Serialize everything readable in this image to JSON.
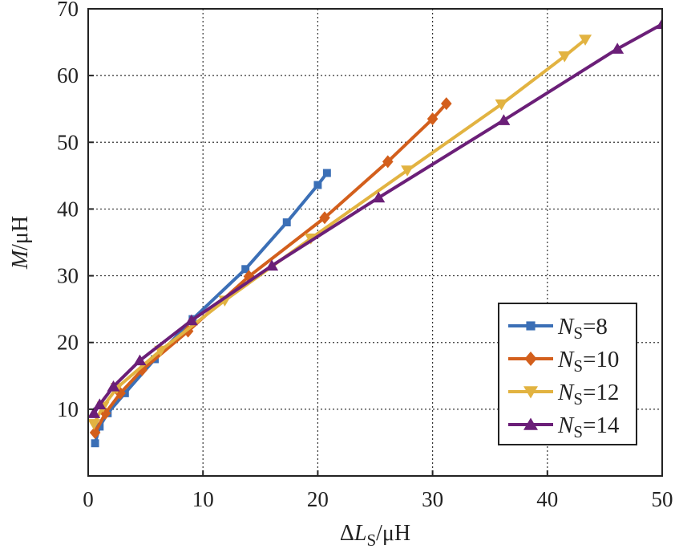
{
  "chart_data": {
    "type": "line",
    "xlabel": "ΔLS/μH",
    "ylabel": "M/μH",
    "xlim": [
      0,
      50
    ],
    "ylim": [
      0,
      70
    ],
    "xticks": [
      0,
      10,
      20,
      30,
      40,
      50
    ],
    "yticks": [
      10,
      20,
      30,
      40,
      50,
      60,
      70
    ],
    "grid": true,
    "legend_position": "bottom-right",
    "series": [
      {
        "name": "NS=8",
        "color": "#3b6fb6",
        "marker": "square",
        "points": [
          [
            0.6,
            4.9
          ],
          [
            1.0,
            7.4
          ],
          [
            1.7,
            9.4
          ],
          [
            3.2,
            12.4
          ],
          [
            5.8,
            17.5
          ],
          [
            9.1,
            23.5
          ],
          [
            13.7,
            31.0
          ],
          [
            17.3,
            38.0
          ],
          [
            20.0,
            43.6
          ],
          [
            20.8,
            45.4
          ]
        ]
      },
      {
        "name": "NS=10",
        "color": "#d35f1c",
        "marker": "diamond",
        "points": [
          [
            0.6,
            6.5
          ],
          [
            1.5,
            9.4
          ],
          [
            2.8,
            12.4
          ],
          [
            4.7,
            15.9
          ],
          [
            8.7,
            21.7
          ],
          [
            14.0,
            29.9
          ],
          [
            20.6,
            38.7
          ],
          [
            26.1,
            47.1
          ],
          [
            30.0,
            53.5
          ],
          [
            31.2,
            55.8
          ]
        ]
      },
      {
        "name": "NS=12",
        "color": "#e2b341",
        "marker": "triangle-down",
        "points": [
          [
            0.5,
            7.8
          ],
          [
            1.3,
            10.4
          ],
          [
            2.5,
            13.2
          ],
          [
            6.3,
            18.8
          ],
          [
            11.9,
            26.3
          ],
          [
            19.4,
            35.6
          ],
          [
            27.8,
            45.8
          ],
          [
            36.0,
            55.7
          ],
          [
            41.5,
            62.9
          ],
          [
            43.3,
            65.4
          ]
        ]
      },
      {
        "name": "NS=14",
        "color": "#6b1f78",
        "marker": "triangle-up",
        "points": [
          [
            0.5,
            9.4
          ],
          [
            1.0,
            10.7
          ],
          [
            2.2,
            13.4
          ],
          [
            4.5,
            17.3
          ],
          [
            9.0,
            23.3
          ],
          [
            16.0,
            31.5
          ],
          [
            25.3,
            41.7
          ],
          [
            36.2,
            53.3
          ],
          [
            46.1,
            64.0
          ],
          [
            50.0,
            67.7
          ]
        ]
      }
    ]
  }
}
